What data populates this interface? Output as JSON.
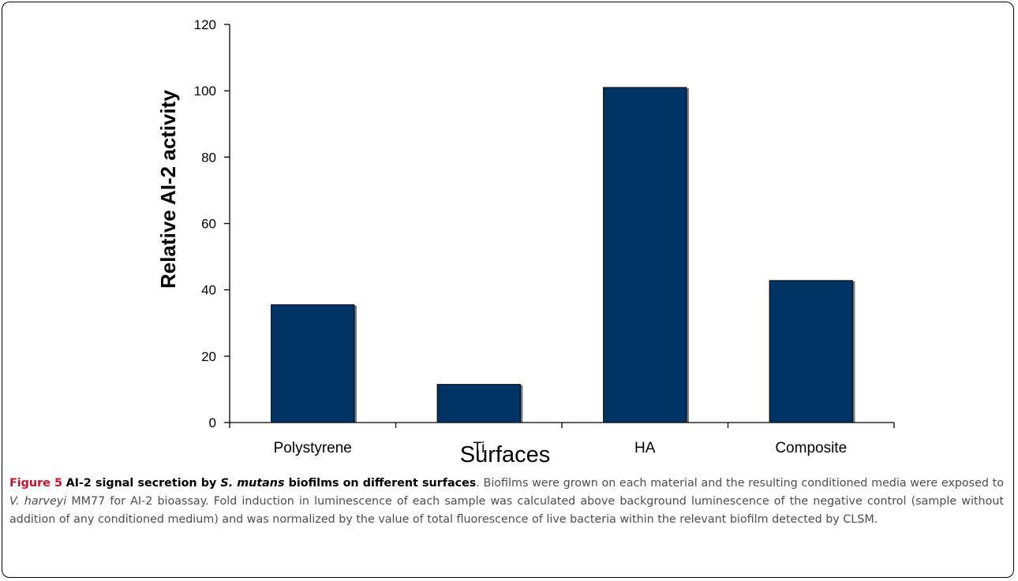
{
  "chart_data": {
    "type": "bar",
    "categories": [
      "Polystyrene",
      "Ti",
      "HA",
      "Composite"
    ],
    "values": [
      35.5,
      11.5,
      101,
      42.8
    ],
    "xlabel": "Surfaces",
    "ylabel": "Relative AI-2 activity",
    "ylim": [
      0,
      120
    ],
    "yticks": [
      0,
      20,
      40,
      60,
      80,
      100,
      120
    ],
    "grid": false,
    "legend": "none",
    "bar_color": "#003366"
  },
  "caption": {
    "figure_label": "Figure 5",
    "title_pre": "AI-2 signal secretion by ",
    "title_species": "S. mutans",
    "title_post": " biofilms on different surfaces",
    "body_1": ". Biofilms were grown on each material and the resulting conditioned media were exposed to ",
    "body_species": "V. harveyi",
    "body_2": " MM77 for AI-2 bioassay. Fold induction in luminescence of each sample was calculated above background luminescence of the negative control (sample without addition of any conditioned medium) and was normalized by the value of total fluorescence of live bacteria within the relevant biofilm detected by CLSM."
  },
  "colors": {
    "figure_label": "#c8102e",
    "caption_text": "#4d4d4d",
    "bar": "#003366"
  }
}
